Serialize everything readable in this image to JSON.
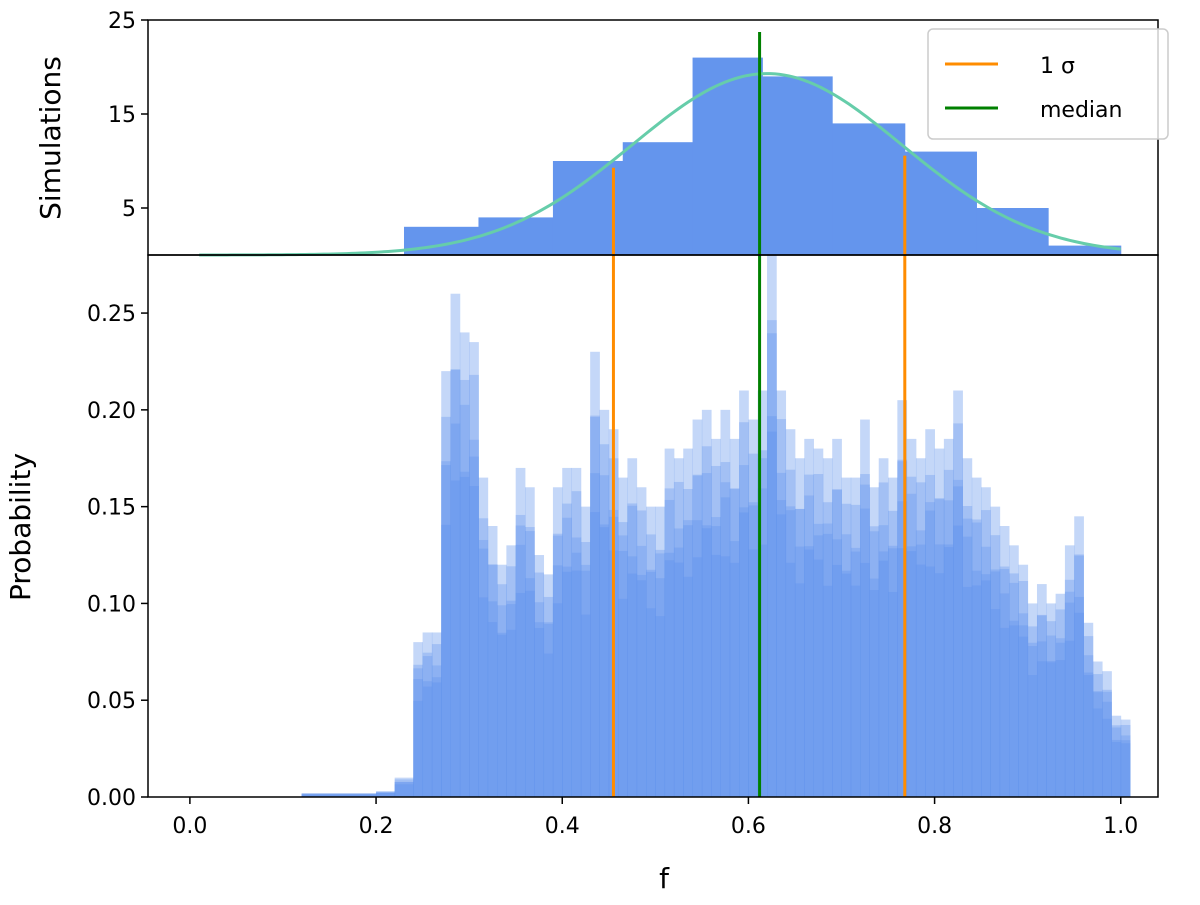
{
  "colors": {
    "hist": "#6495ed",
    "fit_curve": "#66cdaa",
    "sigma": "#ff8c00",
    "median": "#008000",
    "axes": "#000000"
  },
  "chart_data": [
    {
      "panel": "top",
      "type": "bar",
      "title": "",
      "xlabel": "",
      "ylabel": "Simulations",
      "xlim": [
        -0.045,
        1.04
      ],
      "ylim": [
        0,
        25
      ],
      "yticks": [
        5,
        15,
        25
      ],
      "ytick_labels": [
        "5",
        "15",
        "25"
      ],
      "bins": [
        {
          "x0": 0.23,
          "x1": 0.31,
          "value": 3
        },
        {
          "x0": 0.31,
          "x1": 0.39,
          "value": 4
        },
        {
          "x0": 0.39,
          "x1": 0.465,
          "value": 10
        },
        {
          "x0": 0.465,
          "x1": 0.54,
          "value": 12
        },
        {
          "x0": 0.54,
          "x1": 0.615,
          "value": 21
        },
        {
          "x0": 0.615,
          "x1": 0.69,
          "value": 19
        },
        {
          "x0": 0.69,
          "x1": 0.768,
          "value": 14
        },
        {
          "x0": 0.768,
          "x1": 0.845,
          "value": 11
        },
        {
          "x0": 0.845,
          "x1": 0.922,
          "value": 5
        },
        {
          "x0": 0.922,
          "x1": 1.0,
          "value": 1
        }
      ],
      "fit_curve": {
        "type": "gaussian",
        "amplitude": 19.3,
        "mean": 0.62,
        "sigma": 0.145,
        "x_range": [
          0.01,
          1.0
        ]
      },
      "legend": {
        "position": "top-right",
        "entries": [
          {
            "label": "1 σ",
            "color": "#ff8c00"
          },
          {
            "label": "median",
            "color": "#008000"
          }
        ]
      }
    },
    {
      "panel": "bottom",
      "type": "bar",
      "title": "",
      "xlabel": "f",
      "ylabel": "Probability",
      "xlim": [
        -0.045,
        1.04
      ],
      "ylim": [
        0,
        0.28
      ],
      "xticks": [
        0.0,
        0.2,
        0.4,
        0.6,
        0.8,
        1.0
      ],
      "xtick_labels": [
        "0.0",
        "0.2",
        "0.4",
        "0.6",
        "0.8",
        "1.0"
      ],
      "yticks": [
        0.0,
        0.05,
        0.1,
        0.15,
        0.2,
        0.25
      ],
      "ytick_labels": [
        "0.00",
        "0.05",
        "0.10",
        "0.15",
        "0.20",
        "0.25"
      ],
      "bin_width": 0.01,
      "envelope": {
        "x": [
          0.12,
          0.2,
          0.22,
          0.24,
          0.25,
          0.26,
          0.27,
          0.28,
          0.29,
          0.3,
          0.31,
          0.32,
          0.33,
          0.34,
          0.35,
          0.36,
          0.37,
          0.38,
          0.39,
          0.4,
          0.41,
          0.42,
          0.43,
          0.44,
          0.45,
          0.46,
          0.47,
          0.48,
          0.49,
          0.5,
          0.51,
          0.52,
          0.53,
          0.54,
          0.55,
          0.56,
          0.57,
          0.58,
          0.59,
          0.6,
          0.61,
          0.62,
          0.63,
          0.64,
          0.65,
          0.66,
          0.67,
          0.68,
          0.69,
          0.7,
          0.71,
          0.72,
          0.73,
          0.74,
          0.75,
          0.76,
          0.77,
          0.78,
          0.79,
          0.8,
          0.81,
          0.82,
          0.83,
          0.84,
          0.85,
          0.86,
          0.87,
          0.88,
          0.89,
          0.9,
          0.91,
          0.92,
          0.93,
          0.94,
          0.95,
          0.96,
          0.97,
          0.98,
          0.99,
          1.0
        ],
        "y": [
          0.002,
          0.003,
          0.01,
          0.08,
          0.085,
          0.085,
          0.22,
          0.26,
          0.24,
          0.235,
          0.165,
          0.14,
          0.12,
          0.13,
          0.17,
          0.16,
          0.125,
          0.115,
          0.16,
          0.17,
          0.17,
          0.15,
          0.23,
          0.2,
          0.19,
          0.165,
          0.175,
          0.16,
          0.15,
          0.15,
          0.18,
          0.175,
          0.18,
          0.195,
          0.2,
          0.185,
          0.2,
          0.185,
          0.21,
          0.195,
          0.21,
          0.28,
          0.21,
          0.19,
          0.175,
          0.185,
          0.18,
          0.175,
          0.185,
          0.165,
          0.165,
          0.195,
          0.16,
          0.175,
          0.165,
          0.205,
          0.185,
          0.175,
          0.19,
          0.18,
          0.185,
          0.21,
          0.175,
          0.165,
          0.16,
          0.15,
          0.14,
          0.13,
          0.12,
          0.1,
          0.11,
          0.1,
          0.105,
          0.13,
          0.145,
          0.09,
          0.07,
          0.065,
          0.042,
          0.04
        ]
      }
    }
  ],
  "reference_lines": {
    "sigma_low": 0.455,
    "sigma_high": 0.768,
    "median": 0.612
  }
}
